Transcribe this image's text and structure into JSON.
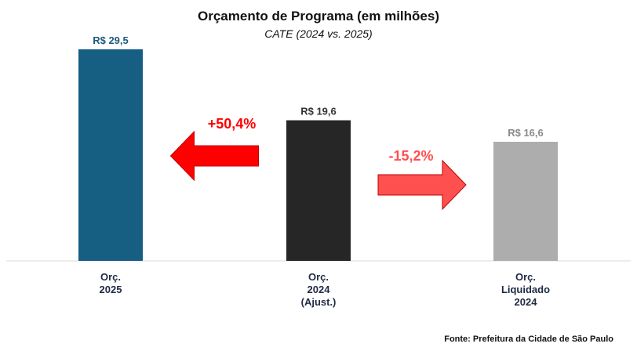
{
  "chart_data": {
    "type": "bar",
    "title": "Orçamento de Programa (em milhões)",
    "subtitle": "CATE (2024 vs. 2025)",
    "categories": [
      [
        "Orç.",
        "2025"
      ],
      [
        "Orç.",
        "2024",
        "(Ajust.)"
      ],
      [
        "Orç.",
        "Liquidado",
        "2024"
      ]
    ],
    "values": [
      29.5,
      19.6,
      16.6
    ],
    "value_labels": [
      "R$ 29,5",
      "R$ 19,6",
      "R$ 16,6"
    ],
    "colors": [
      "#175e83",
      "#262626",
      "#adadad"
    ],
    "label_colors": [
      "#1c5a80",
      "#333333",
      "#8a8a8a"
    ],
    "ylim": [
      0,
      32
    ],
    "annotations": [
      {
        "text": "+50,4%",
        "color": "#ff0000",
        "arrow_direction": "left",
        "between": [
          0,
          1
        ]
      },
      {
        "text": "-15,2%",
        "color": "#ff5050",
        "arrow_direction": "right",
        "between": [
          1,
          2
        ]
      }
    ],
    "source": "Fonte: Prefeitura da Cidade de São Paulo"
  }
}
